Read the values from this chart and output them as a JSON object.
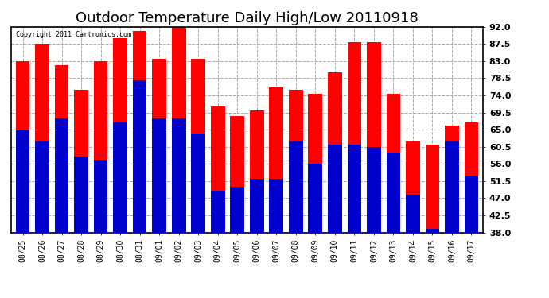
{
  "title": "Outdoor Temperature Daily High/Low 20110918",
  "copyright_text": "Copyright 2011 Cartronics.com",
  "dates": [
    "08/25",
    "08/26",
    "08/27",
    "08/28",
    "08/29",
    "08/30",
    "08/31",
    "09/01",
    "09/02",
    "09/03",
    "09/04",
    "09/05",
    "09/06",
    "09/07",
    "09/08",
    "09/09",
    "09/10",
    "09/11",
    "09/12",
    "09/13",
    "09/14",
    "09/15",
    "09/16",
    "09/17"
  ],
  "highs": [
    83,
    87.5,
    82,
    75.5,
    83,
    89,
    91,
    83.5,
    93,
    83.5,
    71,
    68.5,
    70,
    76,
    75.5,
    74.5,
    80,
    88,
    88,
    74.5,
    62,
    61,
    66,
    67
  ],
  "lows": [
    65,
    62,
    68,
    58,
    57,
    67,
    78,
    68,
    68,
    64,
    49,
    50,
    52,
    52,
    62,
    56,
    61,
    61,
    60.5,
    59,
    48,
    39,
    62,
    53
  ],
  "high_color": "#ff0000",
  "low_color": "#0000cc",
  "ylim_min": 38.0,
  "ylim_max": 92.0,
  "yticks": [
    38.0,
    42.5,
    47.0,
    51.5,
    56.0,
    60.5,
    65.0,
    69.5,
    74.0,
    78.5,
    83.0,
    87.5,
    92.0
  ],
  "background_color": "#ffffff",
  "plot_bg_color": "#ffffff",
  "grid_color": "#aaaaaa",
  "bar_width": 0.72,
  "title_fontsize": 13
}
